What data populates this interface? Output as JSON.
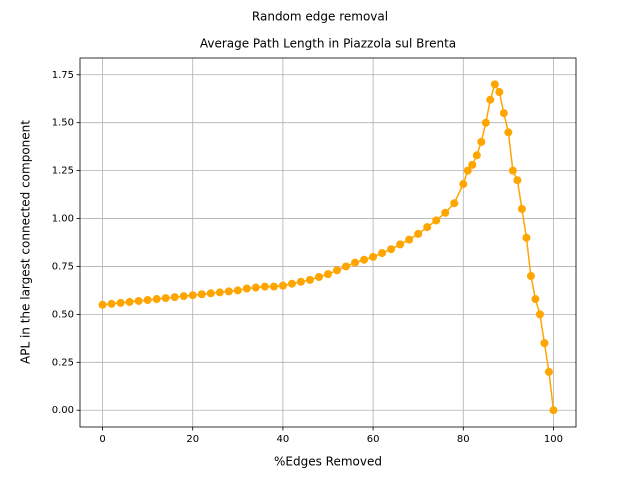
{
  "chart_data": {
    "type": "line",
    "suptitle": "Random edge removal",
    "title": "Average Path Length in Piazzola sul Brenta",
    "xlabel": "%Edges Removed",
    "ylabel": "APL in the largest connected component",
    "x": [
      0,
      2,
      4,
      6,
      8,
      10,
      12,
      14,
      16,
      18,
      20,
      22,
      24,
      26,
      28,
      30,
      32,
      34,
      36,
      38,
      40,
      42,
      44,
      46,
      48,
      50,
      52,
      54,
      56,
      58,
      60,
      62,
      64,
      66,
      68,
      70,
      72,
      74,
      76,
      78,
      80,
      81,
      82,
      83,
      84,
      85,
      86,
      87,
      88,
      89,
      90,
      91,
      92,
      93,
      94,
      95,
      96,
      97,
      98,
      99,
      100
    ],
    "series": [
      {
        "name": "APL",
        "color": "#ffa500",
        "values": [
          0.55,
          0.555,
          0.56,
          0.565,
          0.57,
          0.575,
          0.58,
          0.585,
          0.59,
          0.595,
          0.6,
          0.605,
          0.61,
          0.615,
          0.62,
          0.625,
          0.635,
          0.64,
          0.645,
          0.645,
          0.65,
          0.66,
          0.67,
          0.68,
          0.695,
          0.71,
          0.73,
          0.75,
          0.77,
          0.785,
          0.8,
          0.82,
          0.84,
          0.865,
          0.89,
          0.92,
          0.955,
          0.99,
          1.03,
          1.08,
          1.18,
          1.25,
          1.28,
          1.33,
          1.4,
          1.5,
          1.62,
          1.7,
          1.66,
          1.55,
          1.45,
          1.25,
          1.2,
          1.05,
          0.9,
          0.7,
          0.58,
          0.5,
          0.35,
          0.2,
          0.0
        ]
      }
    ],
    "xlim": [
      -5,
      105
    ],
    "ylim": [
      -0.0875,
      1.8375
    ],
    "xticks": [
      0,
      20,
      40,
      60,
      80,
      100
    ],
    "yticks": [
      {
        "value": 0,
        "label": "0.00"
      },
      0.25,
      {
        "value": 0.5,
        "label": "0.50"
      },
      0.75,
      {
        "value": 1,
        "label": "1.00"
      },
      1.25,
      {
        "value": 1.5,
        "label": "1.50"
      },
      1.75
    ],
    "grid": true
  }
}
